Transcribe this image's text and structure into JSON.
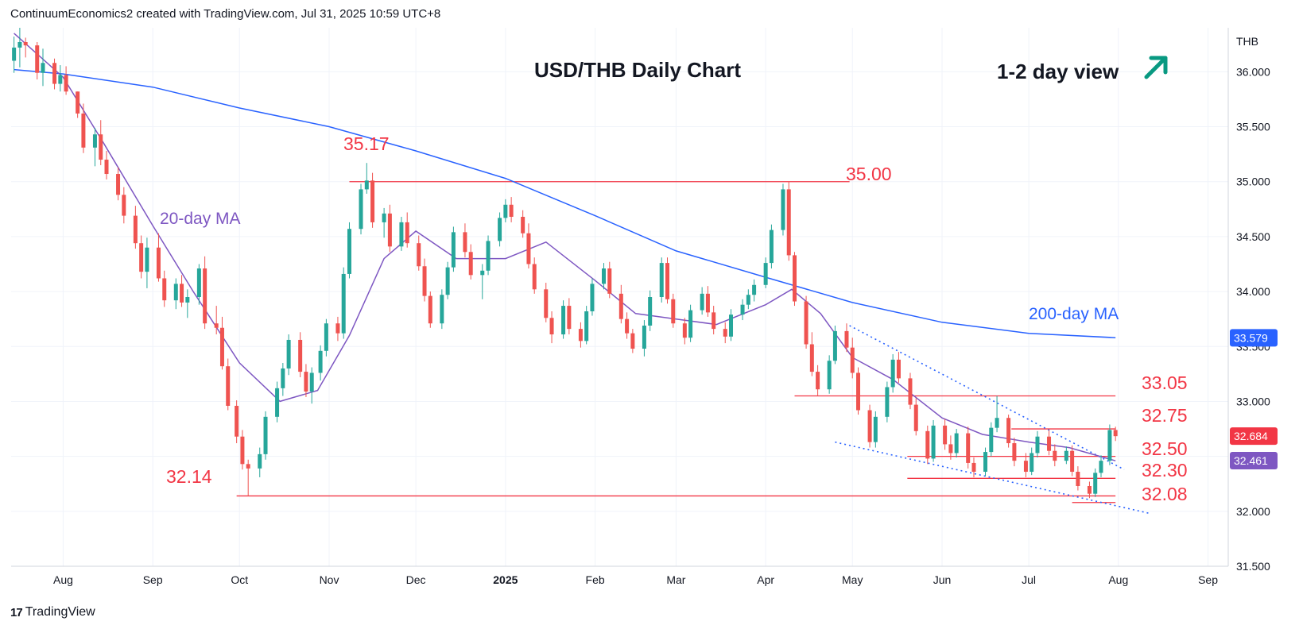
{
  "header": {
    "attribution": "ContinuumEconomics2 created with TradingView.com, Jul 31, 2025 10:59 UTC+8"
  },
  "branding": {
    "footer": "TradingView"
  },
  "colors": {
    "up": "#26a69a",
    "down": "#ef5350",
    "ma20": "#7e57c2",
    "ma200": "#2962ff",
    "level": "#f23645",
    "grid": "#f0f3fa",
    "axis_text": "#131722",
    "arrow": "#089981"
  },
  "chart_data": {
    "type": "candlestick",
    "title": "USD/THB Daily Chart",
    "view_note": "1-2 day view",
    "currency": "THB",
    "y_ticks": [
      "36.000",
      "35.500",
      "35.000",
      "34.500",
      "34.000",
      "33.500",
      "33.000",
      "32.500",
      "32.000",
      "31.500"
    ],
    "ylim": [
      31.5,
      36.4
    ],
    "x_ticks": [
      "Aug",
      "Sep",
      "Oct",
      "Nov",
      "Dec",
      "2025",
      "Feb",
      "Mar",
      "Apr",
      "May",
      "Jun",
      "Jul",
      "Aug",
      "Sep"
    ],
    "x_tick_dates": [
      "2024-08-01",
      "2024-09-01",
      "2024-10-01",
      "2024-11-01",
      "2024-12-01",
      "2025-01-01",
      "2025-02-01",
      "2025-03-01",
      "2025-04-01",
      "2025-05-01",
      "2025-06-01",
      "2025-07-01",
      "2025-08-01",
      "2025-09-01"
    ],
    "price_badges": [
      {
        "label": "33.579",
        "value": 33.579,
        "color": "#2962ff"
      },
      {
        "label": "32.684",
        "value": 32.684,
        "color": "#f23645"
      },
      {
        "label": "32.461",
        "value": 32.461,
        "color": "#7e57c2"
      }
    ],
    "annotations": [
      {
        "text": "35.17",
        "value": 35.17,
        "date": "2024-11-14"
      },
      {
        "text": "35.00",
        "value": 35.0
      },
      {
        "text": "32.14",
        "value": 32.14
      },
      {
        "text": "33.05",
        "value": 33.05
      },
      {
        "text": "32.75",
        "value": 32.75
      },
      {
        "text": "32.50",
        "value": 32.5
      },
      {
        "text": "32.30",
        "value": 32.3
      },
      {
        "text": "32.08",
        "value": 32.08
      },
      {
        "text": "20-day MA"
      },
      {
        "text": "200-day MA"
      }
    ],
    "horizontal_levels": [
      {
        "value": 35.0,
        "from": "2024-11-08",
        "to": "2025-04-30"
      },
      {
        "value": 32.14,
        "from": "2024-09-30",
        "to": "2025-07-31"
      },
      {
        "value": 33.05,
        "from": "2025-04-11",
        "to": "2025-07-31"
      },
      {
        "value": 32.75,
        "from": "2025-06-25",
        "to": "2025-07-31"
      },
      {
        "value": 32.5,
        "from": "2025-05-20",
        "to": "2025-07-31"
      },
      {
        "value": 32.3,
        "from": "2025-05-20",
        "to": "2025-07-31"
      },
      {
        "value": 32.08,
        "from": "2025-07-16",
        "to": "2025-07-31"
      }
    ],
    "trend_lines": [
      {
        "from": [
          "2025-04-30",
          33.69
        ],
        "to": [
          "2025-08-03",
          32.38
        ]
      },
      {
        "from": [
          "2025-04-25",
          32.63
        ],
        "to": [
          "2025-08-12",
          31.98
        ]
      }
    ],
    "ma200": [
      [
        "2024-07-15",
        36.02
      ],
      [
        "2024-08-01",
        35.98
      ],
      [
        "2024-09-01",
        35.86
      ],
      [
        "2024-10-01",
        35.67
      ],
      [
        "2024-11-01",
        35.5
      ],
      [
        "2024-12-01",
        35.28
      ],
      [
        "2025-01-01",
        35.03
      ],
      [
        "2025-02-01",
        34.69
      ],
      [
        "2025-03-01",
        34.37
      ],
      [
        "2025-04-01",
        34.13
      ],
      [
        "2025-05-01",
        33.9
      ],
      [
        "2025-06-01",
        33.72
      ],
      [
        "2025-07-01",
        33.62
      ],
      [
        "2025-07-31",
        33.58
      ]
    ],
    "ma20": [
      [
        "2024-07-15",
        36.35
      ],
      [
        "2024-08-01",
        35.95
      ],
      [
        "2024-08-15",
        35.35
      ],
      [
        "2024-09-01",
        34.6
      ],
      [
        "2024-09-15",
        34.0
      ],
      [
        "2024-10-01",
        33.35
      ],
      [
        "2024-10-15",
        33.0
      ],
      [
        "2024-10-28",
        33.1
      ],
      [
        "2024-11-08",
        33.6
      ],
      [
        "2024-11-20",
        34.3
      ],
      [
        "2024-12-01",
        34.55
      ],
      [
        "2024-12-15",
        34.3
      ],
      [
        "2025-01-01",
        34.3
      ],
      [
        "2025-01-15",
        34.45
      ],
      [
        "2025-02-01",
        34.1
      ],
      [
        "2025-02-15",
        33.8
      ],
      [
        "2025-03-01",
        33.75
      ],
      [
        "2025-03-15",
        33.7
      ],
      [
        "2025-04-01",
        33.88
      ],
      [
        "2025-04-10",
        34.02
      ],
      [
        "2025-04-20",
        33.8
      ],
      [
        "2025-05-01",
        33.4
      ],
      [
        "2025-05-15",
        33.2
      ],
      [
        "2025-06-01",
        32.85
      ],
      [
        "2025-06-15",
        32.7
      ],
      [
        "2025-07-01",
        32.63
      ],
      [
        "2025-07-15",
        32.58
      ],
      [
        "2025-07-31",
        32.46
      ]
    ],
    "series": [
      [
        "2024-07-15",
        36.1,
        36.32,
        35.99,
        36.22
      ],
      [
        "2024-07-17",
        36.22,
        36.4,
        36.04,
        36.27
      ],
      [
        "2024-07-19",
        36.27,
        36.31,
        36.13,
        36.24
      ],
      [
        "2024-07-23",
        36.24,
        36.27,
        35.93,
        35.99
      ],
      [
        "2024-07-25",
        35.99,
        36.21,
        35.87,
        36.08
      ],
      [
        "2024-07-29",
        36.08,
        36.12,
        35.84,
        35.89
      ],
      [
        "2024-07-31",
        35.89,
        36.06,
        35.82,
        35.97
      ],
      [
        "2024-08-02",
        35.97,
        36.05,
        35.79,
        35.82
      ],
      [
        "2024-08-06",
        35.82,
        35.82,
        35.58,
        35.62
      ],
      [
        "2024-08-08",
        35.62,
        35.71,
        35.26,
        35.31
      ],
      [
        "2024-08-12",
        35.31,
        35.49,
        35.14,
        35.43
      ],
      [
        "2024-08-14",
        35.43,
        35.56,
        35.15,
        35.2
      ],
      [
        "2024-08-16",
        35.2,
        35.28,
        35.02,
        35.07
      ],
      [
        "2024-08-20",
        35.07,
        35.13,
        34.83,
        34.88
      ],
      [
        "2024-08-22",
        34.88,
        34.95,
        34.62,
        34.69
      ],
      [
        "2024-08-26",
        34.69,
        34.78,
        34.39,
        34.44
      ],
      [
        "2024-08-28",
        34.44,
        34.51,
        34.12,
        34.18
      ],
      [
        "2024-08-30",
        34.18,
        34.49,
        34.03,
        34.4
      ],
      [
        "2024-09-03",
        34.4,
        34.53,
        34.09,
        34.12
      ],
      [
        "2024-09-05",
        34.12,
        34.19,
        33.86,
        33.92
      ],
      [
        "2024-09-09",
        33.92,
        34.12,
        33.84,
        34.07
      ],
      [
        "2024-09-11",
        34.07,
        34.15,
        33.86,
        33.9
      ],
      [
        "2024-09-13",
        33.9,
        34.02,
        33.76,
        33.95
      ],
      [
        "2024-09-17",
        33.95,
        34.25,
        33.88,
        34.21
      ],
      [
        "2024-09-19",
        34.21,
        34.32,
        33.66,
        33.71
      ],
      [
        "2024-09-23",
        33.71,
        33.87,
        33.61,
        33.67
      ],
      [
        "2024-09-25",
        33.67,
        33.77,
        33.29,
        33.32
      ],
      [
        "2024-09-27",
        33.32,
        33.39,
        32.92,
        32.96
      ],
      [
        "2024-09-30",
        32.96,
        33.01,
        32.62,
        32.68
      ],
      [
        "2024-10-02",
        32.68,
        32.74,
        32.38,
        32.43
      ],
      [
        "2024-10-04",
        32.43,
        32.47,
        32.14,
        32.39
      ],
      [
        "2024-10-08",
        32.39,
        32.58,
        32.31,
        32.52
      ],
      [
        "2024-10-10",
        32.52,
        32.91,
        32.47,
        32.86
      ],
      [
        "2024-10-14",
        32.86,
        33.18,
        32.81,
        33.12
      ],
      [
        "2024-10-16",
        33.12,
        33.35,
        33.05,
        33.3
      ],
      [
        "2024-10-18",
        33.3,
        33.61,
        33.24,
        33.56
      ],
      [
        "2024-10-22",
        33.56,
        33.63,
        33.22,
        33.27
      ],
      [
        "2024-10-24",
        33.27,
        33.34,
        33.04,
        33.09
      ],
      [
        "2024-10-26",
        33.09,
        33.31,
        32.98,
        33.26
      ],
      [
        "2024-10-29",
        33.26,
        33.51,
        33.19,
        33.46
      ],
      [
        "2024-10-31",
        33.46,
        33.75,
        33.41,
        33.71
      ],
      [
        "2024-11-04",
        33.71,
        33.77,
        33.55,
        33.62
      ],
      [
        "2024-11-06",
        33.62,
        34.22,
        33.57,
        34.16
      ],
      [
        "2024-11-08",
        34.16,
        34.63,
        34.12,
        34.57
      ],
      [
        "2024-11-12",
        34.57,
        34.98,
        34.52,
        34.93
      ],
      [
        "2024-11-14",
        34.93,
        35.17,
        34.89,
        35.01
      ],
      [
        "2024-11-16",
        35.01,
        35.08,
        34.58,
        34.63
      ],
      [
        "2024-11-20",
        34.63,
        34.76,
        34.49,
        34.71
      ],
      [
        "2024-11-22",
        34.71,
        34.79,
        34.36,
        34.41
      ],
      [
        "2024-11-26",
        34.41,
        34.68,
        34.37,
        34.63
      ],
      [
        "2024-11-28",
        34.63,
        34.72,
        34.4,
        34.44
      ],
      [
        "2024-12-02",
        34.44,
        34.51,
        34.19,
        34.23
      ],
      [
        "2024-12-04",
        34.23,
        34.3,
        33.91,
        33.96
      ],
      [
        "2024-12-06",
        33.96,
        34.0,
        33.67,
        33.71
      ],
      [
        "2024-12-10",
        33.71,
        34.02,
        33.66,
        33.97
      ],
      [
        "2024-12-12",
        33.97,
        34.27,
        33.93,
        34.22
      ],
      [
        "2024-12-14",
        34.22,
        34.59,
        34.18,
        34.54
      ],
      [
        "2024-12-18",
        34.54,
        34.62,
        34.31,
        34.36
      ],
      [
        "2024-12-20",
        34.36,
        34.43,
        34.11,
        34.15
      ],
      [
        "2024-12-24",
        34.15,
        34.25,
        33.93,
        34.19
      ],
      [
        "2024-12-26",
        34.19,
        34.51,
        34.15,
        34.46
      ],
      [
        "2024-12-30",
        34.46,
        34.72,
        34.41,
        34.67
      ],
      [
        "2025-01-01",
        34.67,
        34.84,
        34.63,
        34.79
      ],
      [
        "2025-01-03",
        34.79,
        34.86,
        34.63,
        34.68
      ],
      [
        "2025-01-07",
        34.68,
        34.74,
        34.49,
        34.53
      ],
      [
        "2025-01-09",
        34.53,
        34.62,
        34.21,
        34.25
      ],
      [
        "2025-01-11",
        34.25,
        34.31,
        33.98,
        34.02
      ],
      [
        "2025-01-15",
        34.02,
        34.08,
        33.72,
        33.76
      ],
      [
        "2025-01-17",
        33.76,
        33.82,
        33.53,
        33.61
      ],
      [
        "2025-01-21",
        33.61,
        33.92,
        33.57,
        33.87
      ],
      [
        "2025-01-23",
        33.87,
        33.94,
        33.61,
        33.66
      ],
      [
        "2025-01-27",
        33.66,
        33.72,
        33.49,
        33.55
      ],
      [
        "2025-01-29",
        33.55,
        33.87,
        33.52,
        33.82
      ],
      [
        "2025-01-31",
        33.82,
        34.12,
        33.78,
        34.07
      ],
      [
        "2025-02-04",
        34.07,
        34.26,
        34.02,
        34.21
      ],
      [
        "2025-02-06",
        34.21,
        34.27,
        33.94,
        33.98
      ],
      [
        "2025-02-10",
        33.98,
        34.06,
        33.71,
        33.75
      ],
      [
        "2025-02-12",
        33.75,
        33.81,
        33.57,
        33.62
      ],
      [
        "2025-02-14",
        33.62,
        33.66,
        33.44,
        33.48
      ],
      [
        "2025-02-18",
        33.48,
        33.74,
        33.41,
        33.69
      ],
      [
        "2025-02-20",
        33.69,
        34.01,
        33.64,
        33.95
      ],
      [
        "2025-02-24",
        33.95,
        34.31,
        33.9,
        34.26
      ],
      [
        "2025-02-26",
        34.26,
        34.31,
        33.89,
        33.93
      ],
      [
        "2025-02-28",
        33.93,
        33.98,
        33.67,
        33.71
      ],
      [
        "2025-03-04",
        33.71,
        33.76,
        33.52,
        33.58
      ],
      [
        "2025-03-06",
        33.58,
        33.88,
        33.54,
        33.83
      ],
      [
        "2025-03-10",
        33.83,
        34.04,
        33.79,
        33.98
      ],
      [
        "2025-03-12",
        33.98,
        34.05,
        33.77,
        33.81
      ],
      [
        "2025-03-14",
        33.81,
        33.87,
        33.61,
        33.66
      ],
      [
        "2025-03-18",
        33.66,
        33.72,
        33.53,
        33.59
      ],
      [
        "2025-03-20",
        33.59,
        33.84,
        33.55,
        33.79
      ],
      [
        "2025-03-24",
        33.79,
        33.93,
        33.74,
        33.88
      ],
      [
        "2025-03-26",
        33.88,
        34.02,
        33.84,
        33.97
      ],
      [
        "2025-03-28",
        33.97,
        34.11,
        33.91,
        34.06
      ],
      [
        "2025-04-01",
        34.06,
        34.31,
        34.03,
        34.26
      ],
      [
        "2025-04-03",
        34.26,
        34.61,
        34.21,
        34.56
      ],
      [
        "2025-04-07",
        34.56,
        34.98,
        34.51,
        34.93
      ],
      [
        "2025-04-09",
        34.93,
        35.0,
        34.28,
        34.33
      ],
      [
        "2025-04-11",
        34.33,
        34.36,
        33.87,
        33.91
      ],
      [
        "2025-04-15",
        33.91,
        33.96,
        33.48,
        33.52
      ],
      [
        "2025-04-17",
        33.52,
        33.63,
        33.23,
        33.27
      ],
      [
        "2025-04-19",
        33.27,
        33.33,
        33.05,
        33.11
      ],
      [
        "2025-04-23",
        33.11,
        33.42,
        33.07,
        33.37
      ],
      [
        "2025-04-25",
        33.37,
        33.69,
        33.34,
        33.64
      ],
      [
        "2025-04-29",
        33.64,
        33.71,
        33.45,
        33.49
      ],
      [
        "2025-05-01",
        33.49,
        33.58,
        33.21,
        33.26
      ],
      [
        "2025-05-03",
        33.26,
        33.31,
        32.88,
        32.92
      ],
      [
        "2025-05-07",
        32.92,
        32.97,
        32.58,
        32.63
      ],
      [
        "2025-05-09",
        32.63,
        32.91,
        32.58,
        32.86
      ],
      [
        "2025-05-13",
        32.86,
        33.18,
        32.81,
        33.13
      ],
      [
        "2025-05-15",
        33.13,
        33.43,
        33.08,
        33.38
      ],
      [
        "2025-05-17",
        33.38,
        33.45,
        33.17,
        33.21
      ],
      [
        "2025-05-21",
        33.21,
        33.26,
        32.93,
        32.97
      ],
      [
        "2025-05-23",
        32.97,
        33.03,
        32.69,
        32.73
      ],
      [
        "2025-05-27",
        32.73,
        32.78,
        32.43,
        32.48
      ],
      [
        "2025-05-29",
        32.48,
        32.83,
        32.45,
        32.78
      ],
      [
        "2025-06-02",
        32.78,
        32.84,
        32.56,
        32.61
      ],
      [
        "2025-06-04",
        32.61,
        32.69,
        32.47,
        32.53
      ],
      [
        "2025-06-06",
        32.53,
        32.75,
        32.49,
        32.71
      ],
      [
        "2025-06-10",
        32.71,
        32.77,
        32.39,
        32.44
      ],
      [
        "2025-06-12",
        32.44,
        32.49,
        32.31,
        32.36
      ],
      [
        "2025-06-16",
        32.36,
        32.58,
        32.32,
        32.54
      ],
      [
        "2025-06-18",
        32.54,
        32.81,
        32.5,
        32.76
      ],
      [
        "2025-06-20",
        32.76,
        33.05,
        32.72,
        32.85
      ],
      [
        "2025-06-24",
        32.85,
        32.88,
        32.58,
        32.62
      ],
      [
        "2025-06-26",
        32.62,
        32.67,
        32.41,
        32.46
      ],
      [
        "2025-06-30",
        32.46,
        32.53,
        32.31,
        32.36
      ],
      [
        "2025-07-02",
        32.36,
        32.58,
        32.33,
        32.53
      ],
      [
        "2025-07-04",
        32.53,
        32.73,
        32.49,
        32.68
      ],
      [
        "2025-07-08",
        32.68,
        32.74,
        32.51,
        32.55
      ],
      [
        "2025-07-10",
        32.55,
        32.61,
        32.41,
        32.46
      ],
      [
        "2025-07-14",
        32.46,
        32.59,
        32.43,
        32.55
      ],
      [
        "2025-07-16",
        32.55,
        32.6,
        32.32,
        32.36
      ],
      [
        "2025-07-18",
        32.36,
        32.41,
        32.19,
        32.23
      ],
      [
        "2025-07-22",
        32.23,
        32.27,
        32.12,
        32.16
      ],
      [
        "2025-07-24",
        32.16,
        32.39,
        32.13,
        32.35
      ],
      [
        "2025-07-26",
        32.35,
        32.51,
        32.31,
        32.46
      ],
      [
        "2025-07-29",
        32.46,
        32.79,
        32.42,
        32.74
      ],
      [
        "2025-07-31",
        32.74,
        32.77,
        32.64,
        32.684
      ]
    ]
  }
}
